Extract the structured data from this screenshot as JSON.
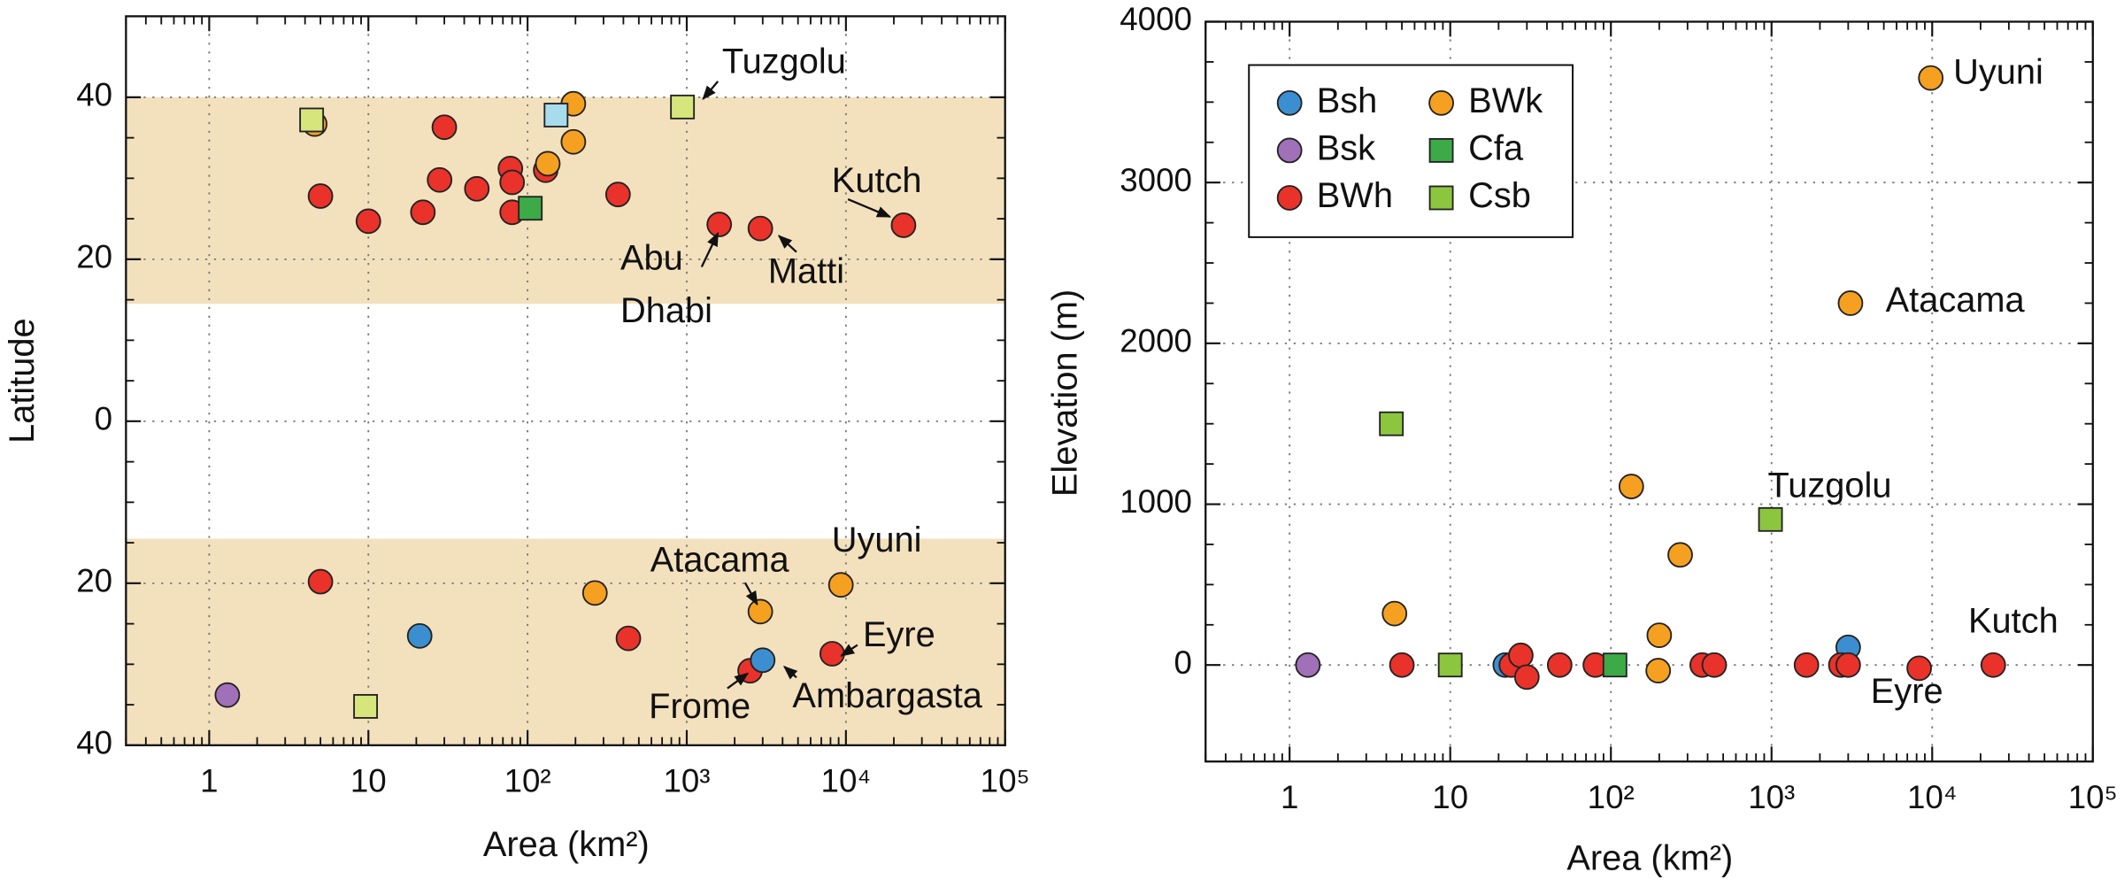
{
  "chart_data": [
    {
      "type": "scatter",
      "xlabel": "Area (km²)",
      "ylabel": "Latitude",
      "xscale": "log",
      "xlim": [
        0.3,
        100000
      ],
      "xticks": [
        1,
        10,
        {
          "value": 100,
          "label": "10²"
        },
        {
          "value": 1000,
          "label": "10³"
        },
        {
          "value": 10000,
          "label": "10⁴"
        },
        {
          "value": 100000,
          "label": "10⁵"
        }
      ],
      "ylim": [
        -40,
        50
      ],
      "yticks": [
        {
          "value": -40,
          "label": "40"
        },
        {
          "value": -20,
          "label": "20"
        },
        0,
        20,
        40
      ],
      "grid": true,
      "bands": [
        [
          14.5,
          40
        ],
        [
          -40,
          -14.5
        ]
      ],
      "band_color": "#f3e1bd",
      "series": [
        {
          "color": "#e8322a",
          "marker": "circle",
          "x": [
            5,
            5,
            10,
            22,
            28,
            30,
            48,
            78,
            80,
            80,
            130,
            370,
            430,
            1600,
            2900,
            8200,
            23000,
            2500
          ],
          "values": [
            27.8,
            -19.8,
            24.7,
            25.8,
            29.8,
            36.3,
            28.7,
            31.2,
            25.8,
            29.5,
            31,
            28,
            -26.8,
            24.3,
            23.8,
            -28.7,
            24.2,
            -30.8
          ]
        },
        {
          "color": "#f5a020",
          "marker": "circle",
          "x": [
            4.6,
            134,
            194,
            194,
            265,
            2900,
            9300
          ],
          "values": [
            36.7,
            31.8,
            39.2,
            34.5,
            -21.2,
            -23.5,
            -20.2
          ]
        },
        {
          "color": "#3b8fd0",
          "marker": "circle",
          "x": [
            21,
            3000
          ],
          "values": [
            -26.5,
            -29.5
          ]
        },
        {
          "color": "#a070b8",
          "marker": "circle",
          "x": [
            1.3
          ],
          "values": [
            -33.8
          ]
        },
        {
          "color": "#d6e67c",
          "marker": "square",
          "x": [
            4.4,
            940,
            9.6
          ],
          "values": [
            37.2,
            38.8,
            -35.2
          ]
        },
        {
          "color": "#3daa48",
          "marker": "square",
          "x": [
            104
          ],
          "values": [
            26.3
          ]
        },
        {
          "color": "#a6dcec",
          "marker": "square",
          "x": [
            151
          ],
          "values": [
            37.8
          ]
        }
      ],
      "annotations": [
        {
          "lines": [
            "Tuzgolu"
          ]
        },
        {
          "lines": [
            "Kutch"
          ]
        },
        {
          "lines": [
            "Abu",
            "Dhabi"
          ]
        },
        {
          "lines": [
            "Matti"
          ]
        },
        {
          "lines": [
            "Atacama"
          ]
        },
        {
          "lines": [
            "Uyuni"
          ]
        },
        {
          "lines": [
            "Eyre"
          ]
        },
        {
          "lines": [
            "Frome"
          ]
        },
        {
          "lines": [
            "Ambargasta"
          ]
        }
      ]
    },
    {
      "type": "scatter",
      "xlabel": "Area (km²)",
      "ylabel": "Elevation (m)",
      "xscale": "log",
      "xlim": [
        0.3,
        100000
      ],
      "xticks": [
        1,
        10,
        {
          "value": 100,
          "label": "10²"
        },
        {
          "value": 1000,
          "label": "10³"
        },
        {
          "value": 10000,
          "label": "10⁴"
        },
        {
          "value": 100000,
          "label": "10⁵"
        }
      ],
      "ylim": [
        -600,
        4000
      ],
      "yticks": [
        0,
        1000,
        2000,
        3000,
        4000
      ],
      "grid": true,
      "legend": "upper left",
      "series": [
        {
          "name": "Bsh",
          "color": "#3b8fd0",
          "marker": "circle",
          "x": [
            22,
            3000
          ],
          "values": [
            0,
            110
          ]
        },
        {
          "name": "Bsk",
          "color": "#a070b8",
          "marker": "circle",
          "x": [
            1.3
          ],
          "values": [
            0
          ]
        },
        {
          "name": "BWh",
          "color": "#e8322a",
          "marker": "circle",
          "x": [
            5,
            24,
            27.5,
            30,
            48,
            80,
            370,
            440,
            1650,
            2700,
            3000,
            8300,
            24000
          ],
          "values": [
            0,
            0,
            60,
            -75,
            0,
            0,
            0,
            0,
            0,
            0,
            0,
            -20,
            0
          ]
        },
        {
          "name": "BWk",
          "color": "#f5a020",
          "marker": "circle",
          "x": [
            9800,
            3100,
            134,
            270,
            4.5,
            200,
            197
          ],
          "values": [
            3650,
            2250,
            1110,
            685,
            320,
            185,
            -35
          ]
        },
        {
          "name": "Cfa",
          "color": "#3daa48",
          "marker": "square",
          "x": [
            106
          ],
          "values": [
            0
          ]
        },
        {
          "name": "Csb",
          "color": "#8cc63f",
          "marker": "square",
          "x": [
            4.3,
            10,
            985
          ],
          "values": [
            1500,
            0,
            905
          ]
        }
      ],
      "annotations": [
        {
          "lines": [
            "Uyuni"
          ]
        },
        {
          "lines": [
            "Atacama"
          ]
        },
        {
          "lines": [
            "Tuzgolu"
          ]
        },
        {
          "lines": [
            "Kutch"
          ]
        },
        {
          "lines": [
            "Eyre"
          ]
        }
      ]
    }
  ]
}
